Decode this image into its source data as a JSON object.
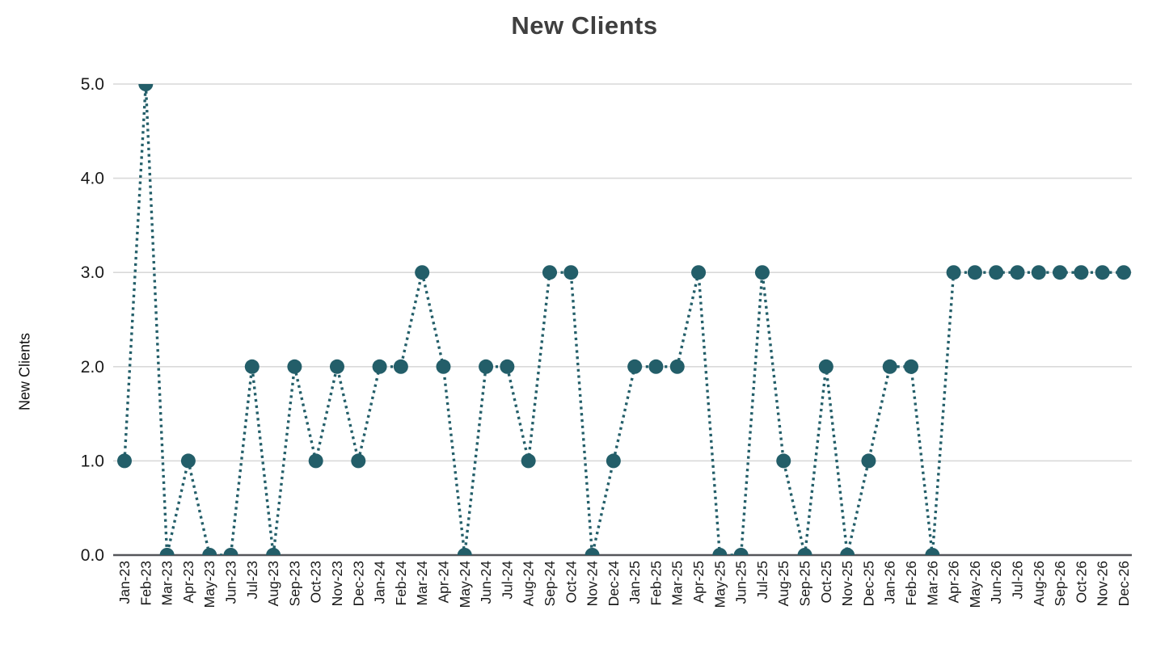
{
  "colors": {
    "marker": "#235e69",
    "line": "#235e69",
    "grid": "#d9d9d9",
    "axis_line": "#55565a",
    "tick_text": "#1a1a1a",
    "title_text": "#3f3f3f",
    "background": "#ffffff"
  },
  "chart_data": {
    "type": "line",
    "title": "New Clients",
    "xlabel": "",
    "ylabel": "New Clients",
    "line_style": "dotted",
    "marker": "circle",
    "grid": true,
    "legend": "none",
    "ylim": [
      0,
      5
    ],
    "ytick_labels": [
      "0.0",
      "1.0",
      "2.0",
      "3.0",
      "4.0",
      "5.0"
    ],
    "ytick_values": [
      0,
      1,
      2,
      3,
      4,
      5
    ],
    "categories": [
      "Jan-23",
      "Feb-23",
      "Mar-23",
      "Apr-23",
      "May-23",
      "Jun-23",
      "Jul-23",
      "Aug-23",
      "Sep-23",
      "Oct-23",
      "Nov-23",
      "Dec-23",
      "Jan-24",
      "Feb-24",
      "Mar-24",
      "Apr-24",
      "May-24",
      "Jun-24",
      "Jul-24",
      "Aug-24",
      "Sep-24",
      "Oct-24",
      "Nov-24",
      "Dec-24",
      "Jan-25",
      "Feb-25",
      "Mar-25",
      "Apr-25",
      "May-25",
      "Jun-25",
      "Jul-25",
      "Aug-25",
      "Sep-25",
      "Oct-25",
      "Nov-25",
      "Dec-25",
      "Jan-26",
      "Feb-26",
      "Mar-26",
      "Apr-26",
      "May-26",
      "Jun-26",
      "Jul-26",
      "Aug-26",
      "Sep-26",
      "Oct-26",
      "Nov-26",
      "Dec-26"
    ],
    "values": [
      1,
      5,
      0,
      1,
      0,
      0,
      2,
      0,
      2,
      1,
      2,
      1,
      2,
      2,
      3,
      2,
      0,
      2,
      2,
      1,
      3,
      3,
      0,
      1,
      2,
      2,
      2,
      3,
      0,
      0,
      3,
      1,
      0,
      2,
      0,
      1,
      2,
      2,
      0,
      3,
      3,
      3,
      3,
      3,
      3,
      3,
      3,
      3
    ]
  }
}
